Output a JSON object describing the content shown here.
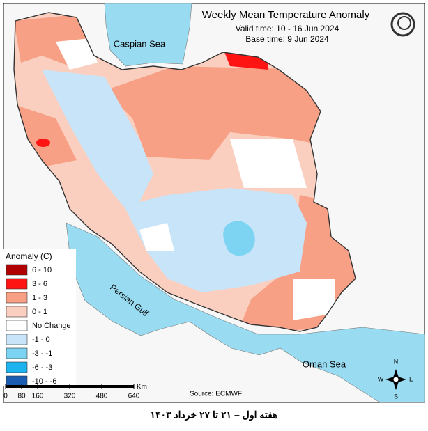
{
  "header": {
    "title": "Weekly Mean Temperature Anomaly",
    "valid_time": "Valid time: 10 - 16 Jun 2024",
    "base_time": "Base time: 9 Jun 2024"
  },
  "labels": {
    "caspian": "Caspian Sea",
    "gulf": "Persian Gulf",
    "oman": "Oman Sea"
  },
  "legend": {
    "title": "Anomaly (C)",
    "items": [
      {
        "label": "6 - 10",
        "color": "#b00000"
      },
      {
        "label": "3 - 6",
        "color": "#ff1414"
      },
      {
        "label": "1 - 3",
        "color": "#f7a085"
      },
      {
        "label": "0 - 1",
        "color": "#fbcfbf"
      },
      {
        "label": "No Change",
        "color": "#ffffff"
      },
      {
        "label": "-1 - 0",
        "color": "#c8e4f8"
      },
      {
        "label": "-3 - -1",
        "color": "#7dd3f2"
      },
      {
        "label": "-6 - -3",
        "color": "#1db3ef"
      },
      {
        "label": "-10 - -6",
        "color": "#1b5db3"
      }
    ]
  },
  "scale": {
    "unit": "Km",
    "ticks": [
      0,
      80,
      160,
      320,
      480,
      640
    ]
  },
  "source": "Source: ECMWF",
  "compass": {
    "n": "N",
    "e": "E",
    "s": "S",
    "w": "W"
  },
  "footer": "هفته اول – ۲۱ تا ۲۷ خرداد ۱۴۰۳"
}
